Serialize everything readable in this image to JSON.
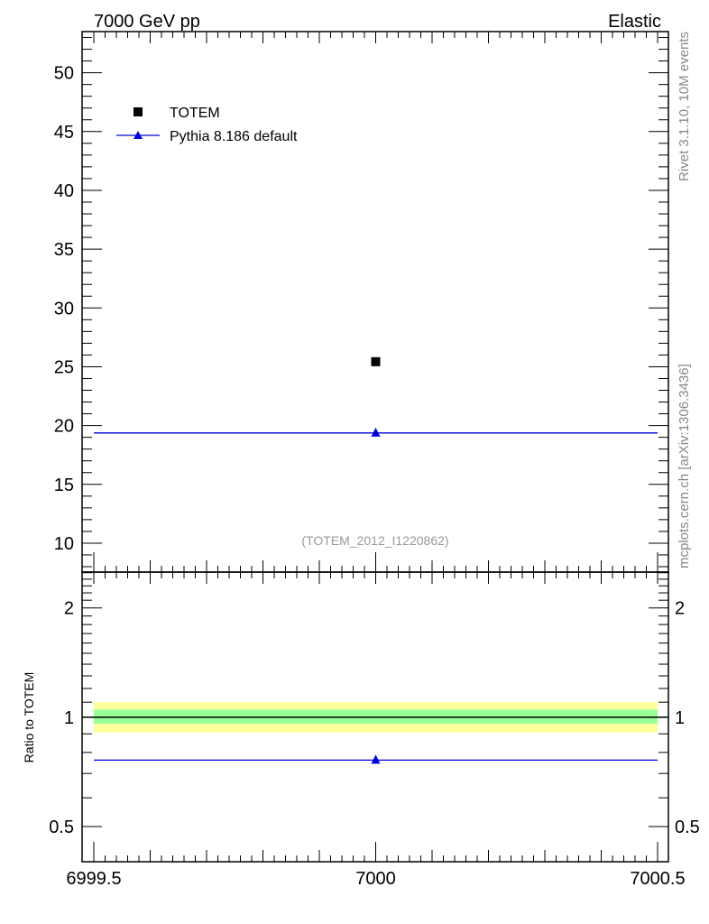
{
  "chart_data": {
    "type": "scatter",
    "title_left": "7000 GeV pp",
    "title_right": "Elastic",
    "side_label_top": "Rivet 3.1.10,  10M events",
    "side_label_bottom": "mcplots.cern.ch [arXiv:1306.3436]",
    "analysis_label": "(TOTEM_2012_I1220862)",
    "xlim": [
      6999.5,
      7000.5
    ],
    "xticks": [
      "6999.5",
      "7000",
      "7000.5"
    ],
    "xtick_values": [
      6999.5,
      7000,
      7000.5
    ],
    "main": {
      "ylim": [
        7.54,
        53.5
      ],
      "yticks": [
        10,
        15,
        20,
        25,
        30,
        35,
        40,
        45,
        50
      ],
      "series": [
        {
          "name": "TOTEM",
          "color": "#000000",
          "marker": "square",
          "x": [
            7000
          ],
          "y": [
            25.43
          ]
        },
        {
          "name": "Pythia 8.186 default",
          "color": "#0000dd",
          "marker": "triangle",
          "x": [
            7000
          ],
          "y": [
            19.37
          ],
          "xerr": [
            0.5
          ]
        }
      ]
    },
    "ratio": {
      "ylabel": "Ratio to TOTEM",
      "scale": "log",
      "ylim": [
        0.4,
        2.51
      ],
      "yticks": [
        0.5,
        1,
        2
      ],
      "ytick_labels": [
        "0.5",
        "1",
        "2"
      ],
      "band_1sigma": [
        0.96,
        1.05
      ],
      "band_2sigma": [
        0.908,
        1.1
      ],
      "band_colors": {
        "inner": "#99ff99",
        "outer": "#ffff99"
      },
      "series": [
        {
          "name": "Pythia 8.186 default",
          "color": "#0000dd",
          "x": [
            7000
          ],
          "y": [
            0.762
          ],
          "xerr": [
            0.5
          ]
        }
      ]
    }
  }
}
